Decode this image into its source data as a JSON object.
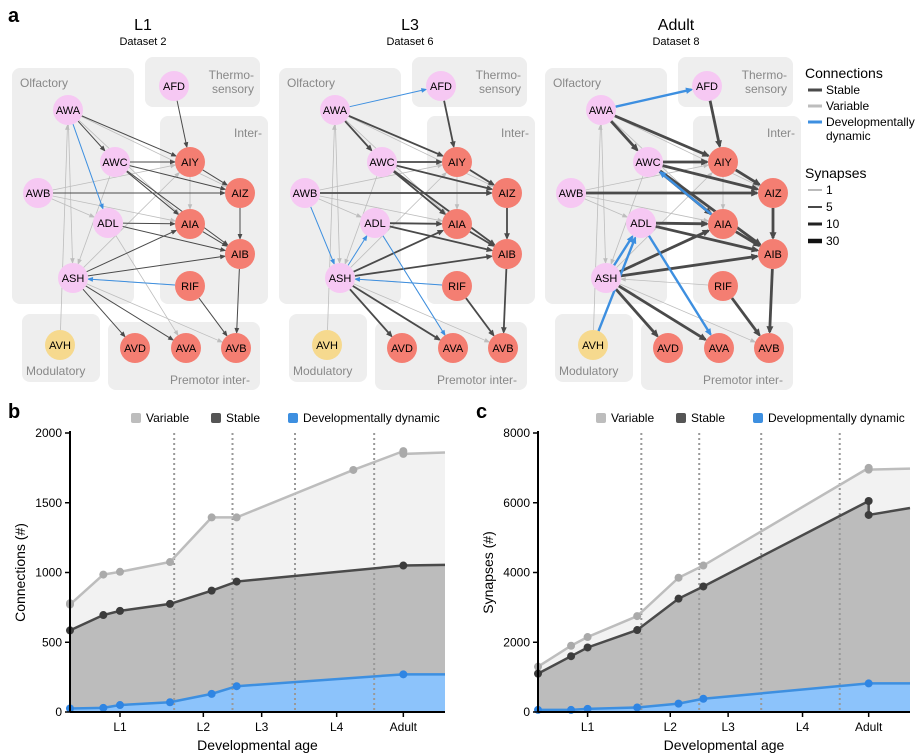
{
  "panel_letters": {
    "a": "a",
    "b": "b",
    "c": "c"
  },
  "networks": [
    {
      "stage": "L1",
      "dataset": "Dataset 2"
    },
    {
      "stage": "L3",
      "dataset": "Dataset 6"
    },
    {
      "stage": "Adult",
      "dataset": "Dataset 8"
    }
  ],
  "groups": {
    "olfactory": "Olfactory",
    "thermo_line1": "Thermo-",
    "thermo_line2": "sensory",
    "inter": "Inter-",
    "modulatory": "Modulatory",
    "premotor": "Premotor inter-"
  },
  "neurons": [
    "AWA",
    "AWC",
    "AWB",
    "ADL",
    "ASH",
    "AFD",
    "AIY",
    "AIZ",
    "AIA",
    "AIB",
    "RIF",
    "AVH",
    "AVD",
    "AVA",
    "AVB"
  ],
  "colors": {
    "sensory": "#f6c8f3",
    "inter": "#f47e72",
    "modulatory": "#f6d98e",
    "box": "#eeeeee",
    "stable": "#4a4a4a",
    "variable": "#bdbdbd",
    "dynamic": "#3d8fe0",
    "stable_fill": "#bcbcbc",
    "variable_fill": "#f2f2f2",
    "dynamic_fill": "#8cc3fb"
  },
  "legend": {
    "connections_title": "Connections",
    "stable": "Stable",
    "variable": "Variable",
    "dynamic_line1": "Developmentally",
    "dynamic_line2": "dynamic",
    "synapses_title": "Synapses",
    "synapse_levels": [
      "1",
      "5",
      "10",
      "30"
    ]
  },
  "chart_legend": {
    "variable": "Variable",
    "stable": "Stable",
    "dynamic": "Developmentally dynamic"
  },
  "chart_data": [
    {
      "type": "area",
      "xlabel": "Developmental age",
      "ylabel": "Connections (#)",
      "ylim": [
        0,
        2000
      ],
      "yticks": [
        0,
        500,
        1000,
        1500,
        2000
      ],
      "xlim": [
        0,
        45
      ],
      "stage_labels": [
        {
          "label": "L1",
          "x": 6
        },
        {
          "label": "L2",
          "x": 16
        },
        {
          "label": "L3",
          "x": 23
        },
        {
          "label": "L4",
          "x": 32
        },
        {
          "label": "Adult",
          "x": 40
        }
      ],
      "stage_boundaries": [
        12.5,
        19.5,
        27,
        36.5
      ],
      "grid": false,
      "series": [
        {
          "name": "Variable",
          "points": [
            [
              0,
              780
            ],
            [
              0,
              770
            ],
            [
              4,
              985
            ],
            [
              6,
              1005
            ],
            [
              12,
              1075
            ],
            [
              17,
              1395
            ],
            [
              20,
              1395
            ],
            [
              34,
              1735
            ],
            [
              40,
              1870
            ],
            [
              40,
              1850
            ],
            [
              45,
              1860
            ]
          ]
        },
        {
          "name": "Stable",
          "points": [
            [
              0,
              585
            ],
            [
              4,
              695
            ],
            [
              6,
              725
            ],
            [
              12,
              775
            ],
            [
              17,
              870
            ],
            [
              20,
              935
            ],
            [
              40,
              1050
            ],
            [
              45,
              1055
            ]
          ]
        },
        {
          "name": "Developmentally dynamic",
          "points": [
            [
              0,
              25
            ],
            [
              4,
              30
            ],
            [
              6,
              50
            ],
            [
              12,
              70
            ],
            [
              17,
              130
            ],
            [
              20,
              185
            ],
            [
              40,
              270
            ],
            [
              45,
              270
            ]
          ]
        }
      ]
    },
    {
      "type": "area",
      "xlabel": "Developmental age",
      "ylabel": "Synapses (#)",
      "ylim": [
        0,
        8000
      ],
      "yticks": [
        0,
        2000,
        4000,
        6000,
        8000
      ],
      "xlim": [
        0,
        45
      ],
      "stage_labels": [
        {
          "label": "L1",
          "x": 6
        },
        {
          "label": "L2",
          "x": 16
        },
        {
          "label": "L3",
          "x": 23
        },
        {
          "label": "L4",
          "x": 32
        },
        {
          "label": "Adult",
          "x": 40
        }
      ],
      "stage_boundaries": [
        12.5,
        19.5,
        27,
        36.5
      ],
      "grid": false,
      "series": [
        {
          "name": "Variable",
          "points": [
            [
              0,
              1300
            ],
            [
              4,
              1900
            ],
            [
              6,
              2150
            ],
            [
              12,
              2750
            ],
            [
              17,
              3850
            ],
            [
              20,
              4200
            ],
            [
              40,
              7000
            ],
            [
              40,
              6950
            ],
            [
              45,
              6980
            ]
          ]
        },
        {
          "name": "Stable",
          "points": [
            [
              0,
              1100
            ],
            [
              4,
              1600
            ],
            [
              6,
              1850
            ],
            [
              12,
              2350
            ],
            [
              17,
              3250
            ],
            [
              20,
              3600
            ],
            [
              40,
              6050
            ],
            [
              40,
              5650
            ],
            [
              45,
              5850
            ]
          ]
        },
        {
          "name": "Developmentally dynamic",
          "points": [
            [
              0,
              60
            ],
            [
              4,
              60
            ],
            [
              6,
              90
            ],
            [
              12,
              130
            ],
            [
              17,
              240
            ],
            [
              20,
              380
            ],
            [
              40,
              820
            ],
            [
              45,
              820
            ]
          ]
        }
      ]
    }
  ]
}
